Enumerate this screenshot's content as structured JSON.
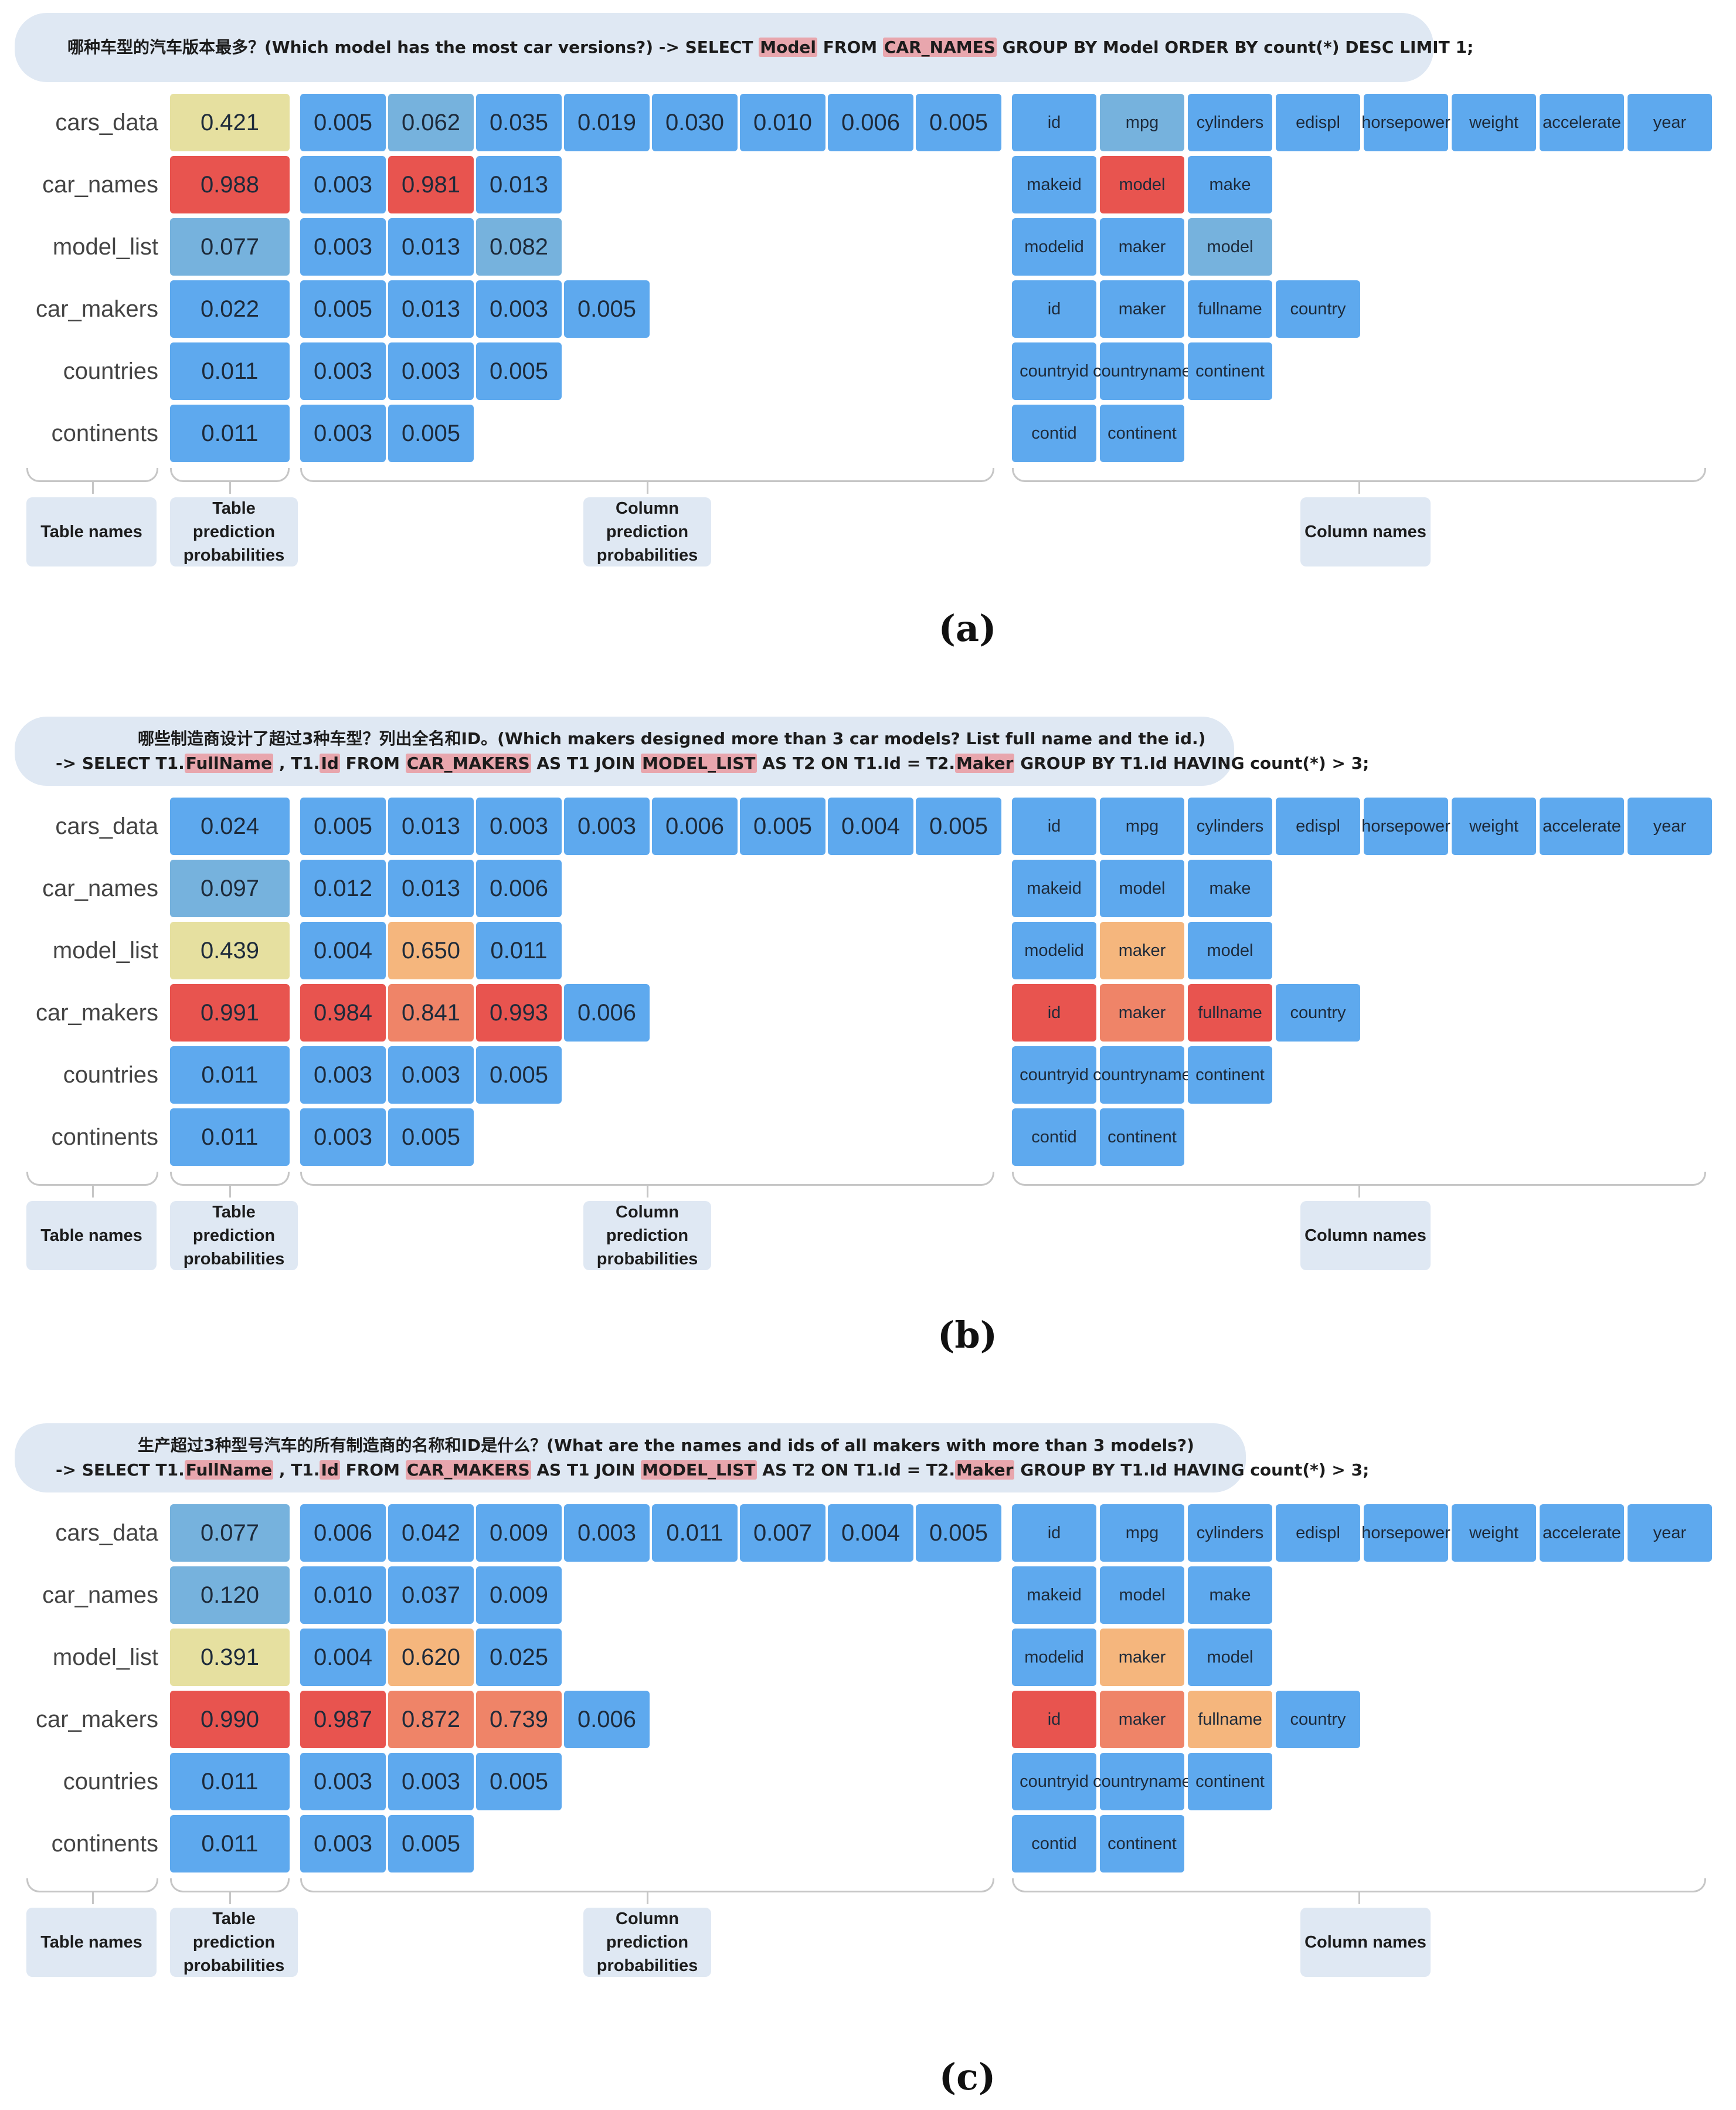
{
  "row_labels": [
    "cars_data",
    "car_names",
    "model_list",
    "car_makers",
    "countries",
    "continents"
  ],
  "colors": {
    "blue": "#5ea9ee",
    "steel": "#76b2dd",
    "pale_yellow": "#e6e0a0",
    "red": "#e8544f",
    "salmon": "#ef8468",
    "orange": "#f5b67d",
    "brace": "#c6c6c6",
    "label_bg": "#dfe8f3",
    "highlight": "#e8a6ad"
  },
  "labels": {
    "table_names": "Table names",
    "table_probs": [
      "Table",
      "prediction",
      "probabilities"
    ],
    "col_probs": [
      "Column",
      "prediction",
      "probabilities"
    ],
    "column_names": "Column names"
  },
  "panels": [
    {
      "id": "a",
      "caption": "(a)",
      "question_lines": [
        [
          {
            "t": "哪种车型的汽车版本最多？(Which model has the most car versions?) -> SELECT "
          },
          {
            "t": "Model",
            "hl": true
          },
          {
            "t": " FROM "
          },
          {
            "t": "CAR_NAMES",
            "hl": true
          },
          {
            "t": " GROUP BY Model ORDER BY count(*) DESC LIMIT 1;"
          }
        ]
      ],
      "table_probs": [
        {
          "v": "0.421",
          "c": "pale_yellow"
        },
        {
          "v": "0.988",
          "c": "red"
        },
        {
          "v": "0.077",
          "c": "steel"
        },
        {
          "v": "0.022",
          "c": "blue"
        },
        {
          "v": "0.011",
          "c": "blue"
        },
        {
          "v": "0.011",
          "c": "blue"
        }
      ],
      "col_probs": [
        [
          {
            "v": "0.005",
            "c": "blue"
          },
          {
            "v": "0.062",
            "c": "steel"
          },
          {
            "v": "0.035",
            "c": "blue"
          },
          {
            "v": "0.019",
            "c": "blue"
          },
          {
            "v": "0.030",
            "c": "blue"
          },
          {
            "v": "0.010",
            "c": "blue"
          },
          {
            "v": "0.006",
            "c": "blue"
          },
          {
            "v": "0.005",
            "c": "blue"
          }
        ],
        [
          {
            "v": "0.003",
            "c": "blue"
          },
          {
            "v": "0.981",
            "c": "red"
          },
          {
            "v": "0.013",
            "c": "blue"
          }
        ],
        [
          {
            "v": "0.003",
            "c": "blue"
          },
          {
            "v": "0.013",
            "c": "blue"
          },
          {
            "v": "0.082",
            "c": "steel"
          }
        ],
        [
          {
            "v": "0.005",
            "c": "blue"
          },
          {
            "v": "0.013",
            "c": "blue"
          },
          {
            "v": "0.003",
            "c": "blue"
          },
          {
            "v": "0.005",
            "c": "blue"
          }
        ],
        [
          {
            "v": "0.003",
            "c": "blue"
          },
          {
            "v": "0.003",
            "c": "blue"
          },
          {
            "v": "0.005",
            "c": "blue"
          }
        ],
        [
          {
            "v": "0.003",
            "c": "blue"
          },
          {
            "v": "0.005",
            "c": "blue"
          }
        ]
      ],
      "col_names": [
        [
          {
            "n": "id",
            "c": "blue"
          },
          {
            "n": "mpg",
            "c": "steel"
          },
          {
            "n": "cylinders",
            "c": "blue"
          },
          {
            "n": "edispl",
            "c": "blue"
          },
          {
            "n": "horse\npower",
            "c": "blue"
          },
          {
            "n": "weight",
            "c": "blue"
          },
          {
            "n": "accelerate",
            "c": "blue"
          },
          {
            "n": "year",
            "c": "blue"
          }
        ],
        [
          {
            "n": "makeid",
            "c": "blue"
          },
          {
            "n": "model",
            "c": "red"
          },
          {
            "n": "make",
            "c": "blue"
          }
        ],
        [
          {
            "n": "modelid",
            "c": "blue"
          },
          {
            "n": "maker",
            "c": "blue"
          },
          {
            "n": "model",
            "c": "steel"
          }
        ],
        [
          {
            "n": "id",
            "c": "blue"
          },
          {
            "n": "maker",
            "c": "blue"
          },
          {
            "n": "fullname",
            "c": "blue"
          },
          {
            "n": "country",
            "c": "blue"
          }
        ],
        [
          {
            "n": "countryid",
            "c": "blue"
          },
          {
            "n": "country\nname",
            "c": "blue"
          },
          {
            "n": "continent",
            "c": "blue"
          }
        ],
        [
          {
            "n": "contid",
            "c": "blue"
          },
          {
            "n": "continent",
            "c": "blue"
          }
        ]
      ]
    },
    {
      "id": "b",
      "caption": "(b)",
      "question_lines": [
        [
          {
            "t": "哪些制造商设计了超过3种车型？列出全名和ID。(Which makers designed more than 3 car models? List full name and the id.)"
          }
        ],
        [
          {
            "t": "-> SELECT T1."
          },
          {
            "t": "FullName",
            "hl": true
          },
          {
            "t": " , T1."
          },
          {
            "t": "Id",
            "hl": true
          },
          {
            "t": " FROM "
          },
          {
            "t": "CAR_MAKERS",
            "hl": true
          },
          {
            "t": " AS T1 JOIN "
          },
          {
            "t": "MODEL_LIST",
            "hl": true
          },
          {
            "t": " AS T2 ON T1.Id = T2."
          },
          {
            "t": "Maker",
            "hl": true
          },
          {
            "t": " GROUP BY T1.Id HAVING count(*) > 3;"
          }
        ]
      ],
      "table_probs": [
        {
          "v": "0.024",
          "c": "blue"
        },
        {
          "v": "0.097",
          "c": "steel"
        },
        {
          "v": "0.439",
          "c": "pale_yellow"
        },
        {
          "v": "0.991",
          "c": "red"
        },
        {
          "v": "0.011",
          "c": "blue"
        },
        {
          "v": "0.011",
          "c": "blue"
        }
      ],
      "col_probs": [
        [
          {
            "v": "0.005",
            "c": "blue"
          },
          {
            "v": "0.013",
            "c": "blue"
          },
          {
            "v": "0.003",
            "c": "blue"
          },
          {
            "v": "0.003",
            "c": "blue"
          },
          {
            "v": "0.006",
            "c": "blue"
          },
          {
            "v": "0.005",
            "c": "blue"
          },
          {
            "v": "0.004",
            "c": "blue"
          },
          {
            "v": "0.005",
            "c": "blue"
          }
        ],
        [
          {
            "v": "0.012",
            "c": "blue"
          },
          {
            "v": "0.013",
            "c": "blue"
          },
          {
            "v": "0.006",
            "c": "blue"
          }
        ],
        [
          {
            "v": "0.004",
            "c": "blue"
          },
          {
            "v": "0.650",
            "c": "orange"
          },
          {
            "v": "0.011",
            "c": "blue"
          }
        ],
        [
          {
            "v": "0.984",
            "c": "red"
          },
          {
            "v": "0.841",
            "c": "salmon"
          },
          {
            "v": "0.993",
            "c": "red"
          },
          {
            "v": "0.006",
            "c": "blue"
          }
        ],
        [
          {
            "v": "0.003",
            "c": "blue"
          },
          {
            "v": "0.003",
            "c": "blue"
          },
          {
            "v": "0.005",
            "c": "blue"
          }
        ],
        [
          {
            "v": "0.003",
            "c": "blue"
          },
          {
            "v": "0.005",
            "c": "blue"
          }
        ]
      ],
      "col_names": [
        [
          {
            "n": "id",
            "c": "blue"
          },
          {
            "n": "mpg",
            "c": "blue"
          },
          {
            "n": "cylinders",
            "c": "blue"
          },
          {
            "n": "edispl",
            "c": "blue"
          },
          {
            "n": "horse\npower",
            "c": "blue"
          },
          {
            "n": "weight",
            "c": "blue"
          },
          {
            "n": "accelerate",
            "c": "blue"
          },
          {
            "n": "year",
            "c": "blue"
          }
        ],
        [
          {
            "n": "makeid",
            "c": "blue"
          },
          {
            "n": "model",
            "c": "blue"
          },
          {
            "n": "make",
            "c": "blue"
          }
        ],
        [
          {
            "n": "modelid",
            "c": "blue"
          },
          {
            "n": "maker",
            "c": "orange"
          },
          {
            "n": "model",
            "c": "blue"
          }
        ],
        [
          {
            "n": "id",
            "c": "red"
          },
          {
            "n": "maker",
            "c": "salmon"
          },
          {
            "n": "fullname",
            "c": "red"
          },
          {
            "n": "country",
            "c": "blue"
          }
        ],
        [
          {
            "n": "countryid",
            "c": "blue"
          },
          {
            "n": "country\nname",
            "c": "blue"
          },
          {
            "n": "continent",
            "c": "blue"
          }
        ],
        [
          {
            "n": "contid",
            "c": "blue"
          },
          {
            "n": "continent",
            "c": "blue"
          }
        ]
      ]
    },
    {
      "id": "c",
      "caption": "(c)",
      "question_lines": [
        [
          {
            "t": "生产超过3种型号汽车的所有制造商的名称和ID是什么？(What are the names and ids of all makers with more than 3 models?)"
          }
        ],
        [
          {
            "t": "-> SELECT T1."
          },
          {
            "t": "FullName",
            "hl": true
          },
          {
            "t": " , T1."
          },
          {
            "t": "Id",
            "hl": true
          },
          {
            "t": " FROM "
          },
          {
            "t": "CAR_MAKERS",
            "hl": true
          },
          {
            "t": " AS T1 JOIN "
          },
          {
            "t": "MODEL_LIST",
            "hl": true
          },
          {
            "t": " AS T2 ON T1.Id = T2."
          },
          {
            "t": "Maker",
            "hl": true
          },
          {
            "t": " GROUP BY T1.Id HAVING count(*) > 3;"
          }
        ]
      ],
      "table_probs": [
        {
          "v": "0.077",
          "c": "steel"
        },
        {
          "v": "0.120",
          "c": "steel"
        },
        {
          "v": "0.391",
          "c": "pale_yellow"
        },
        {
          "v": "0.990",
          "c": "red"
        },
        {
          "v": "0.011",
          "c": "blue"
        },
        {
          "v": "0.011",
          "c": "blue"
        }
      ],
      "col_probs": [
        [
          {
            "v": "0.006",
            "c": "blue"
          },
          {
            "v": "0.042",
            "c": "blue"
          },
          {
            "v": "0.009",
            "c": "blue"
          },
          {
            "v": "0.003",
            "c": "blue"
          },
          {
            "v": "0.011",
            "c": "blue"
          },
          {
            "v": "0.007",
            "c": "blue"
          },
          {
            "v": "0.004",
            "c": "blue"
          },
          {
            "v": "0.005",
            "c": "blue"
          }
        ],
        [
          {
            "v": "0.010",
            "c": "blue"
          },
          {
            "v": "0.037",
            "c": "blue"
          },
          {
            "v": "0.009",
            "c": "blue"
          }
        ],
        [
          {
            "v": "0.004",
            "c": "blue"
          },
          {
            "v": "0.620",
            "c": "orange"
          },
          {
            "v": "0.025",
            "c": "blue"
          }
        ],
        [
          {
            "v": "0.987",
            "c": "red"
          },
          {
            "v": "0.872",
            "c": "salmon"
          },
          {
            "v": "0.739",
            "c": "salmon"
          },
          {
            "v": "0.006",
            "c": "blue"
          }
        ],
        [
          {
            "v": "0.003",
            "c": "blue"
          },
          {
            "v": "0.003",
            "c": "blue"
          },
          {
            "v": "0.005",
            "c": "blue"
          }
        ],
        [
          {
            "v": "0.003",
            "c": "blue"
          },
          {
            "v": "0.005",
            "c": "blue"
          }
        ]
      ],
      "col_names": [
        [
          {
            "n": "id",
            "c": "blue"
          },
          {
            "n": "mpg",
            "c": "blue"
          },
          {
            "n": "cylinders",
            "c": "blue"
          },
          {
            "n": "edispl",
            "c": "blue"
          },
          {
            "n": "horse\npower",
            "c": "blue"
          },
          {
            "n": "weight",
            "c": "blue"
          },
          {
            "n": "accelerate",
            "c": "blue"
          },
          {
            "n": "year",
            "c": "blue"
          }
        ],
        [
          {
            "n": "makeid",
            "c": "blue"
          },
          {
            "n": "model",
            "c": "blue"
          },
          {
            "n": "make",
            "c": "blue"
          }
        ],
        [
          {
            "n": "modelid",
            "c": "blue"
          },
          {
            "n": "maker",
            "c": "orange"
          },
          {
            "n": "model",
            "c": "blue"
          }
        ],
        [
          {
            "n": "id",
            "c": "red"
          },
          {
            "n": "maker",
            "c": "salmon"
          },
          {
            "n": "fullname",
            "c": "orange"
          },
          {
            "n": "country",
            "c": "blue"
          }
        ],
        [
          {
            "n": "countryi\nd",
            "c": "blue"
          },
          {
            "n": "country\nname",
            "c": "blue"
          },
          {
            "n": "continent",
            "c": "blue"
          }
        ],
        [
          {
            "n": "contid",
            "c": "blue"
          },
          {
            "n": "continent",
            "c": "blue"
          }
        ]
      ]
    }
  ]
}
